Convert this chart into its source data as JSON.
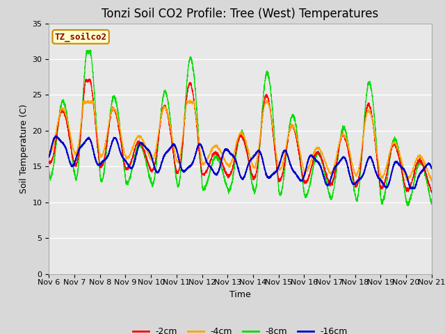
{
  "title": "Tonzi Soil CO2 Profile: Tree (West) Temperatures",
  "xlabel": "Time",
  "ylabel": "Soil Temperature (C)",
  "ylim": [
    0,
    35
  ],
  "yticks": [
    0,
    5,
    10,
    15,
    20,
    25,
    30,
    35
  ],
  "x_labels": [
    "Nov 6",
    "Nov 7",
    "Nov 8",
    "Nov 9",
    "Nov 10",
    "Nov 11",
    "Nov 12",
    "Nov 13",
    "Nov 14",
    "Nov 15",
    "Nov 16",
    "Nov 17",
    "Nov 18",
    "Nov 19",
    "Nov 20",
    "Nov 21"
  ],
  "color_2cm": "#ff0000",
  "color_4cm": "#ffa500",
  "color_8cm": "#00dd00",
  "color_16cm": "#0000cc",
  "legend_label": "TZ_soilco2",
  "legend_bg": "#ffffcc",
  "legend_border": "#cc8800",
  "bg_color": "#e8e8e8",
  "fig_bg": "#d8d8d8",
  "grid_color": "#ffffff",
  "title_fontsize": 12,
  "axis_fontsize": 9,
  "tick_fontsize": 8,
  "n_days": 15,
  "ppd": 288
}
